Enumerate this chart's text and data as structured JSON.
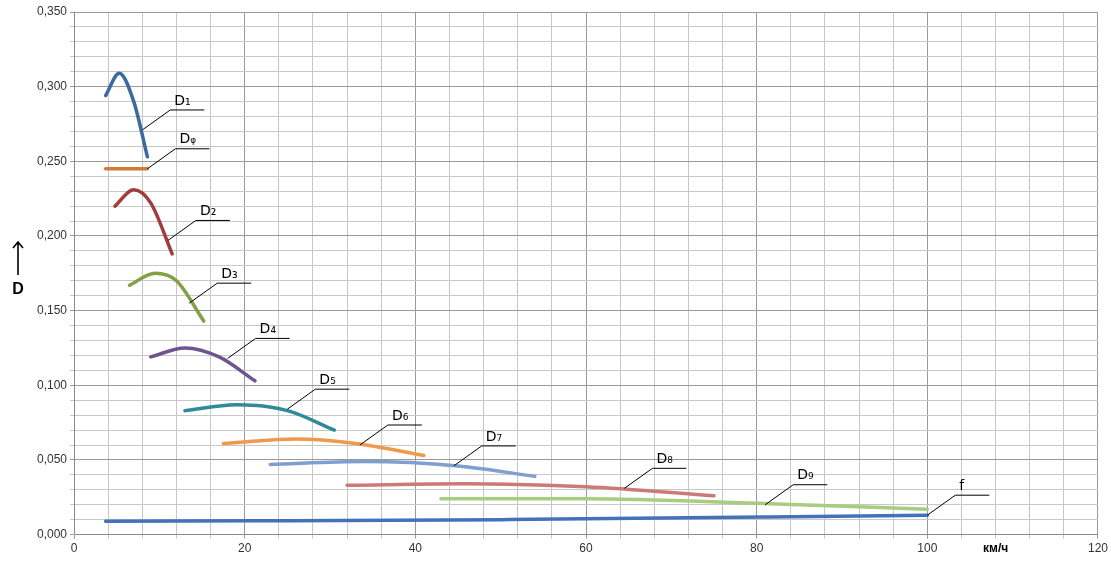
{
  "chart_data": {
    "type": "line",
    "xlabel": "км/ч",
    "ylabel": "D",
    "series": [
      {
        "color": "#3d6a9e",
        "x": [
          3.7,
          5.3,
          7,
          8.6
        ],
        "values": [
          0.294,
          0.309,
          0.29,
          0.253
        ]
      },
      {
        "color": "#d07b3a",
        "x": [
          3.7,
          8.6
        ],
        "values": [
          0.245,
          0.245
        ]
      },
      {
        "color": "#a33d3d",
        "x": [
          4.8,
          7,
          9,
          11.5
        ],
        "values": [
          0.22,
          0.231,
          0.222,
          0.188
        ]
      },
      {
        "color": "#84a046",
        "x": [
          6.5,
          9.5,
          12,
          15.2
        ],
        "values": [
          0.167,
          0.175,
          0.17,
          0.143
        ]
      },
      {
        "color": "#6e5490",
        "x": [
          9,
          13,
          17,
          21.2
        ],
        "values": [
          0.119,
          0.125,
          0.119,
          0.103
        ]
      },
      {
        "color": "#2f8a9a",
        "x": [
          13,
          19,
          25,
          30.5
        ],
        "values": [
          0.083,
          0.087,
          0.083,
          0.07
        ]
      },
      {
        "color": "#ef9a4a",
        "x": [
          17.5,
          26,
          33,
          41
        ],
        "values": [
          0.061,
          0.064,
          0.061,
          0.053
        ]
      },
      {
        "color": "#7f9fcf",
        "x": [
          23,
          34,
          45,
          54
        ],
        "values": [
          0.047,
          0.049,
          0.046,
          0.039
        ]
      },
      {
        "color": "#cc7a78",
        "x": [
          32,
          46,
          60,
          75
        ],
        "values": [
          0.033,
          0.034,
          0.032,
          0.026
        ]
      },
      {
        "color": "#a8cc80",
        "x": [
          43,
          60,
          80,
          100
        ],
        "values": [
          0.024,
          0.024,
          0.021,
          0.017
        ]
      },
      {
        "color": "#4472b8",
        "x": [
          3.7,
          50,
          100
        ],
        "values": [
          0.009,
          0.01,
          0.013
        ]
      }
    ],
    "annotations": [
      {
        "text": "D₁",
        "x": 8,
        "y": 0.271
      },
      {
        "text": "Dᵩ",
        "x": 8.6,
        "y": 0.245
      },
      {
        "text": "D₂",
        "x": 11,
        "y": 0.197
      },
      {
        "text": "D₃",
        "x": 13.5,
        "y": 0.155
      },
      {
        "text": "D₄",
        "x": 18,
        "y": 0.118
      },
      {
        "text": "D₅",
        "x": 25,
        "y": 0.084
      },
      {
        "text": "D₆",
        "x": 33.5,
        "y": 0.06
      },
      {
        "text": "D₇",
        "x": 44.5,
        "y": 0.046
      },
      {
        "text": "D₈",
        "x": 64.5,
        "y": 0.031
      },
      {
        "text": "D₉",
        "x": 81,
        "y": 0.02
      },
      {
        "text": "f",
        "x": 100,
        "y": 0.013
      }
    ],
    "xlim": [
      0,
      120
    ],
    "xticks": [
      0,
      {
        "value": 4,
        "label": null
      },
      {
        "value": 8,
        "label": null
      },
      {
        "value": 12,
        "label": null
      },
      {
        "value": 16,
        "label": null
      },
      20,
      {
        "value": 24,
        "label": null
      },
      {
        "value": 28,
        "label": null
      },
      {
        "value": 32,
        "label": null
      },
      {
        "value": 36,
        "label": null
      },
      40,
      {
        "value": 44,
        "label": null
      },
      {
        "value": 48,
        "label": null
      },
      {
        "value": 52,
        "label": null
      },
      {
        "value": 56,
        "label": null
      },
      60,
      {
        "value": 64,
        "label": null
      },
      {
        "value": 68,
        "label": null
      },
      {
        "value": 72,
        "label": null
      },
      {
        "value": 76,
        "label": null
      },
      80,
      {
        "value": 84,
        "label": null
      },
      {
        "value": 88,
        "label": null
      },
      {
        "value": 92,
        "label": null
      },
      {
        "value": 96,
        "label": null
      },
      100,
      {
        "value": 104,
        "label": null
      },
      {
        "value": 108,
        "label": null
      },
      {
        "value": 112,
        "label": null
      },
      {
        "value": 116,
        "label": null
      },
      120
    ],
    "ylim": [
      0,
      0.35
    ],
    "yticks": [
      {
        "value": 0,
        "label": "0,000"
      },
      {
        "value": 0.01,
        "label": null
      },
      {
        "value": 0.02,
        "label": null
      },
      {
        "value": 0.03,
        "label": null
      },
      {
        "value": 0.04,
        "label": null
      },
      {
        "value": 0.05,
        "label": "0,050"
      },
      {
        "value": 0.06,
        "label": null
      },
      {
        "value": 0.07,
        "label": null
      },
      {
        "value": 0.08,
        "label": null
      },
      {
        "value": 0.09,
        "label": null
      },
      {
        "value": 0.1,
        "label": "0,100"
      },
      {
        "value": 0.11,
        "label": null
      },
      {
        "value": 0.12,
        "label": null
      },
      {
        "value": 0.13,
        "label": null
      },
      {
        "value": 0.14,
        "label": null
      },
      {
        "value": 0.15,
        "label": "0,150"
      },
      {
        "value": 0.16,
        "label": null
      },
      {
        "value": 0.17,
        "label": null
      },
      {
        "value": 0.18,
        "label": null
      },
      {
        "value": 0.19,
        "label": null
      },
      {
        "value": 0.2,
        "label": "0,200"
      },
      {
        "value": 0.21,
        "label": null
      },
      {
        "value": 0.22,
        "label": null
      },
      {
        "value": 0.23,
        "label": null
      },
      {
        "value": 0.24,
        "label": null
      },
      {
        "value": 0.25,
        "label": "0,250"
      },
      {
        "value": 0.26,
        "label": null
      },
      {
        "value": 0.27,
        "label": null
      },
      {
        "value": 0.28,
        "label": null
      },
      {
        "value": 0.29,
        "label": null
      },
      {
        "value": 0.3,
        "label": "0,300"
      },
      {
        "value": 0.31,
        "label": null
      },
      {
        "value": 0.32,
        "label": null
      },
      {
        "value": 0.33,
        "label": null
      },
      {
        "value": 0.34,
        "label": null
      },
      {
        "value": 0.35,
        "label": "0,350"
      }
    ],
    "grid": true,
    "marker": "none",
    "line_style": "solid",
    "legend": false
  }
}
